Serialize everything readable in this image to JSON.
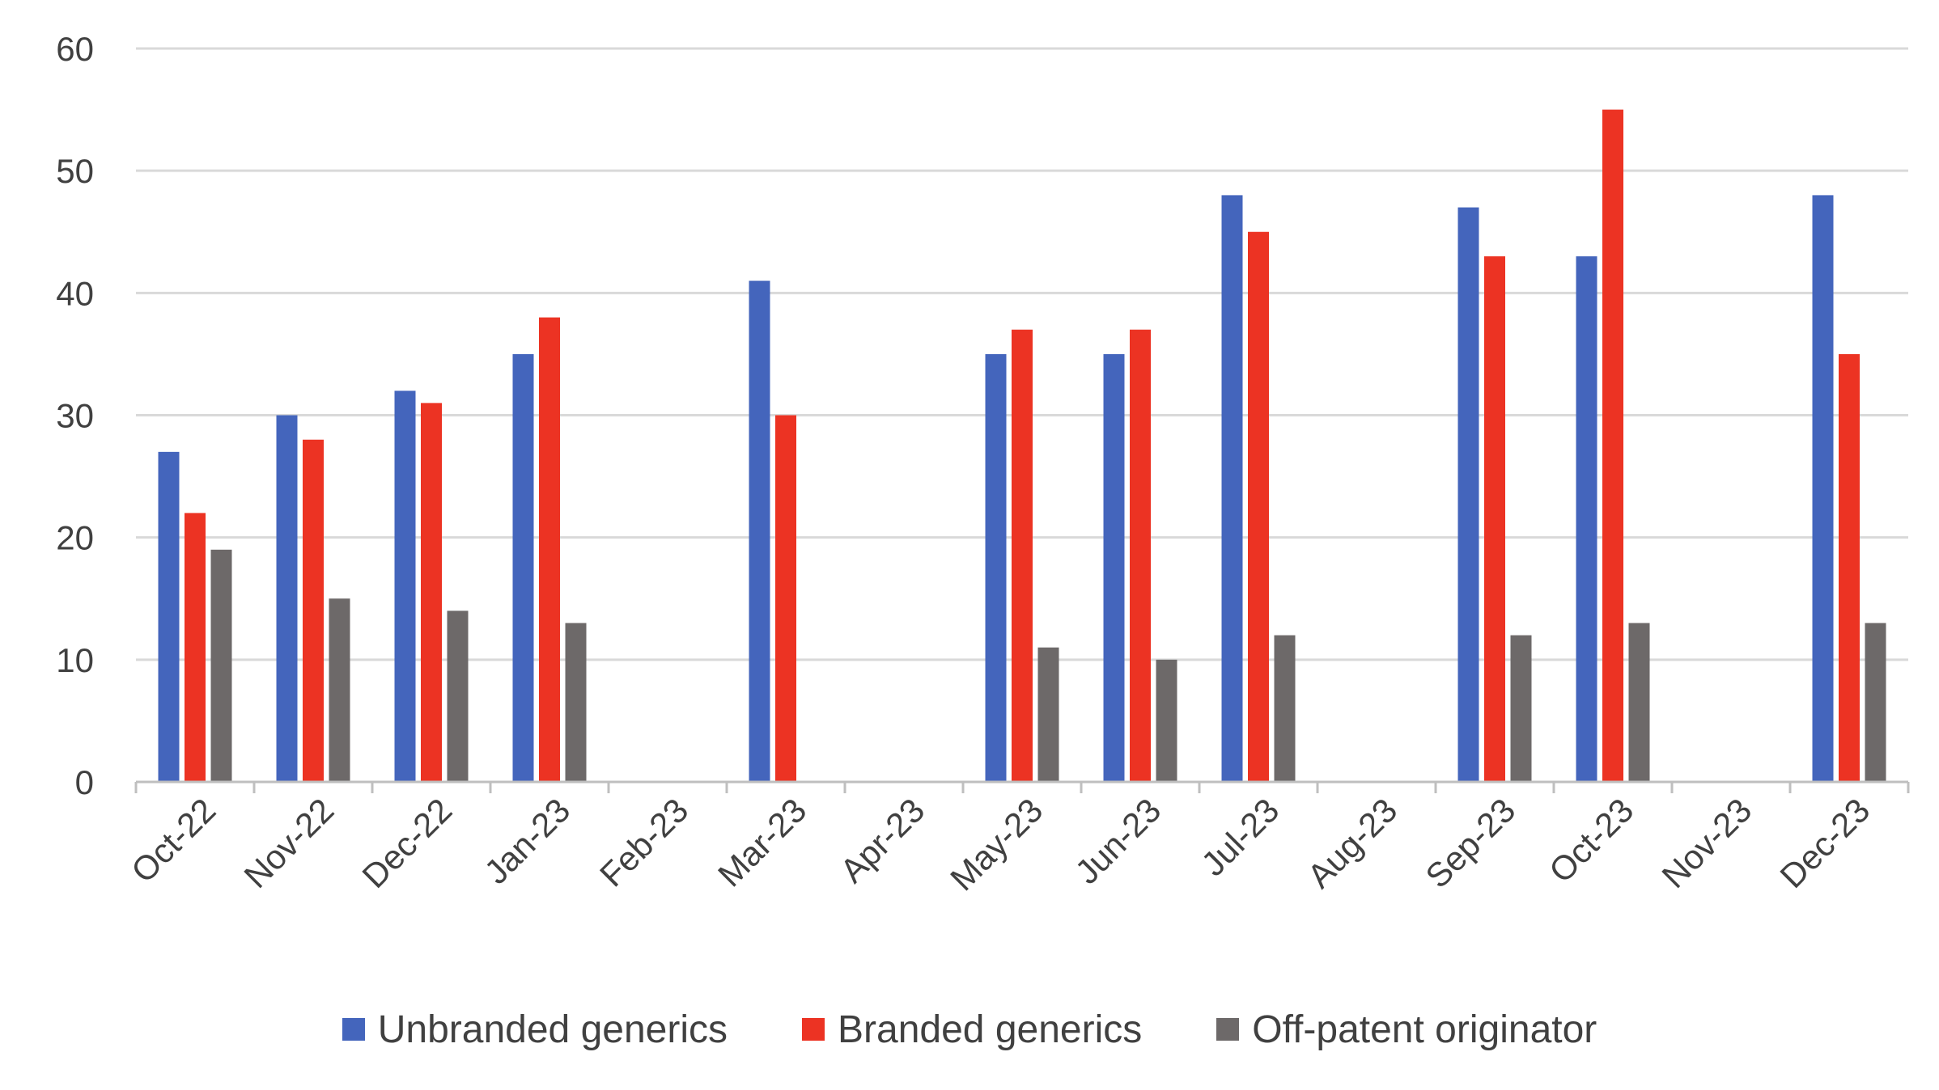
{
  "chart_data": {
    "type": "bar",
    "title": "",
    "xlabel": "",
    "ylabel": "",
    "ylim": [
      0,
      60
    ],
    "yticks": [
      0,
      10,
      20,
      30,
      40,
      50,
      60
    ],
    "grid": true,
    "legend_position": "bottom",
    "categories": [
      "Oct-22",
      "Nov-22",
      "Dec-22",
      "Jan-23",
      "Feb-23",
      "Mar-23",
      "Apr-23",
      "May-23",
      "Jun-23",
      "Jul-23",
      "Aug-23",
      "Sep-23",
      "Oct-23",
      "Nov-23",
      "Dec-23"
    ],
    "series": [
      {
        "name": "Unbranded generics",
        "color": "#4465BC",
        "values": [
          27,
          30,
          32,
          35,
          null,
          41,
          null,
          35,
          35,
          48,
          null,
          47,
          43,
          null,
          48
        ]
      },
      {
        "name": "Branded generics",
        "color": "#EC3323",
        "values": [
          22,
          28,
          31,
          38,
          null,
          30,
          null,
          37,
          37,
          45,
          null,
          43,
          55,
          null,
          35
        ]
      },
      {
        "name": "Off-patent originator",
        "color": "#6D6969",
        "values": [
          19,
          15,
          14,
          13,
          null,
          null,
          null,
          11,
          10,
          12,
          null,
          12,
          13,
          null,
          13
        ]
      }
    ],
    "colors": {
      "grid": "#D9D9D9",
      "axis": "#BFBFBF",
      "text": "#404040"
    }
  }
}
